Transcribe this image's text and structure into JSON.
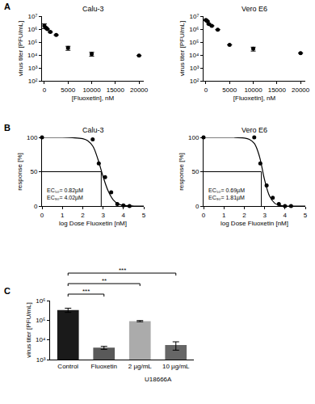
{
  "chart_data": [
    {
      "type": "scatter",
      "panel": "A",
      "title": "Calu-3",
      "x_label": "[Fluoxetin], nM",
      "y_label": "virus titer [PFU/mL]",
      "x": [
        0,
        312,
        625,
        1250,
        2500,
        5000,
        10000,
        20000
      ],
      "values": [
        1800000,
        1300000,
        1000000,
        600000,
        350000,
        35000,
        12000,
        9000
      ],
      "errors": [
        700000,
        100000,
        0,
        50000,
        0,
        12000,
        4000,
        0
      ],
      "color": "#000000",
      "marker": "circle",
      "log": "y",
      "xlim": [
        -500,
        21000
      ],
      "ylim": [
        100,
        10000000
      ],
      "xticks": [
        0,
        5000,
        10000,
        15000,
        20000
      ],
      "yticks": [
        {
          "value": 100,
          "label": "10²"
        },
        {
          "value": 1000,
          "label": "10³"
        },
        {
          "value": 10000,
          "label": "10⁴"
        },
        {
          "value": 100000,
          "label": "10⁵"
        },
        {
          "value": 1000000,
          "label": "10⁶"
        },
        {
          "value": 10000000,
          "label": "10⁷"
        }
      ]
    },
    {
      "type": "scatter",
      "title": "Vero E6",
      "x_label": "[Fluoxetin], nM",
      "y_label": "virus titer [PFU/mL]",
      "x": [
        0,
        312,
        625,
        1250,
        2500,
        5000,
        10000,
        20000
      ],
      "values": [
        5000000,
        4000000,
        2500000,
        1800000,
        900000,
        60000,
        30000,
        14000
      ],
      "errors": [
        500000,
        300000,
        200000,
        0,
        0,
        0,
        10000,
        0
      ],
      "color": "#000000",
      "marker": "circle",
      "log": "y",
      "xlim": [
        -500,
        21000
      ],
      "ylim": [
        100,
        10000000
      ],
      "xticks": [
        0,
        5000,
        10000,
        15000,
        20000
      ],
      "yticks": [
        {
          "value": 100,
          "label": "10²"
        },
        {
          "value": 1000,
          "label": "10³"
        },
        {
          "value": 10000,
          "label": "10⁴"
        },
        {
          "value": 100000,
          "label": "10⁵"
        },
        {
          "value": 1000000,
          "label": "10⁶"
        },
        {
          "value": 10000000,
          "label": "10⁷"
        }
      ]
    },
    {
      "type": "line",
      "panel": "B",
      "title": "Calu-3",
      "x_label": "log Dose Fluoxetin [nM]",
      "y_label": "response [%]",
      "x": [
        0,
        2.49,
        2.79,
        3.1,
        3.4,
        3.7,
        4.0,
        4.3
      ],
      "values": [
        100,
        97,
        62,
        42,
        20,
        3,
        1,
        0
      ],
      "curve_x": [
        0,
        1,
        1.5,
        2,
        2.25,
        2.5,
        2.75,
        3,
        3.25,
        3.5,
        3.75,
        4,
        4.5,
        5
      ],
      "curve_values": [
        100,
        100,
        99.5,
        98,
        95,
        87,
        68,
        43,
        22,
        9,
        3,
        1,
        0,
        0
      ],
      "reference_point": [
        2.91,
        50
      ],
      "notes": [
        "EC₅₀= 0.82µM",
        "EC₉₀= 4.02µM"
      ],
      "color": "#000000",
      "marker": "circle",
      "xlim": [
        0,
        5
      ],
      "ylim": [
        0,
        100
      ],
      "xticks": [
        0,
        1,
        2,
        3,
        4,
        5
      ],
      "yticks": [
        0,
        50,
        100
      ]
    },
    {
      "type": "line",
      "title": "Vero E6",
      "x_label": "log Dose Fluoxetin [nM]",
      "y_label": "response [%]",
      "x": [
        0,
        2.49,
        2.79,
        3.1,
        3.4,
        3.7,
        4.0,
        4.3
      ],
      "values": [
        100,
        100,
        62,
        30,
        12,
        3,
        0,
        0
      ],
      "curve_x": [
        0,
        1,
        1.5,
        2,
        2.25,
        2.5,
        2.75,
        3,
        3.25,
        3.5,
        3.75,
        4,
        4.5,
        5
      ],
      "curve_values": [
        100,
        100,
        100,
        99,
        97,
        91,
        72,
        38,
        14,
        4,
        1,
        0,
        0,
        0
      ],
      "reference_point": [
        2.84,
        50
      ],
      "notes": [
        "EC₅₀= 0.69µM",
        "EC₉₀= 1.81µM"
      ],
      "color": "#000000",
      "marker": "circle",
      "xlim": [
        0,
        5
      ],
      "ylim": [
        0,
        100
      ],
      "xticks": [
        0,
        1,
        2,
        3,
        4,
        5
      ],
      "yticks": [
        0,
        50,
        100
      ]
    },
    {
      "type": "bar",
      "panel": "C",
      "y_label": "virus titer [PFU/mL]",
      "categories": [
        "Control",
        "Fluoxetin",
        "2 µg/mL",
        "10 µg/mL"
      ],
      "values": [
        330000,
        4000,
        90000,
        5500
      ],
      "errors": [
        80000,
        700,
        6000,
        2500
      ],
      "colors": [
        "#1a1a1a",
        "#595959",
        "#ababab",
        "#666666"
      ],
      "group_labels": [
        {
          "label": "U18666A",
          "categories": [
            "2 µg/mL",
            "10 µg/mL"
          ]
        }
      ],
      "comparisons": [
        {
          "from": "Control",
          "to": "Fluoxetin",
          "label": "***"
        },
        {
          "from": "Control",
          "to": "2 µg/mL",
          "label": "**"
        },
        {
          "from": "Control",
          "to": "10 µg/mL",
          "label": "***"
        }
      ],
      "log": "y",
      "ylim": [
        1000,
        1000000
      ],
      "yticks": [
        {
          "value": 1000,
          "label": "10³"
        },
        {
          "value": 10000,
          "label": "10⁴"
        },
        {
          "value": 100000,
          "label": "10⁵"
        },
        {
          "value": 1000000,
          "label": "10⁶"
        }
      ]
    }
  ]
}
